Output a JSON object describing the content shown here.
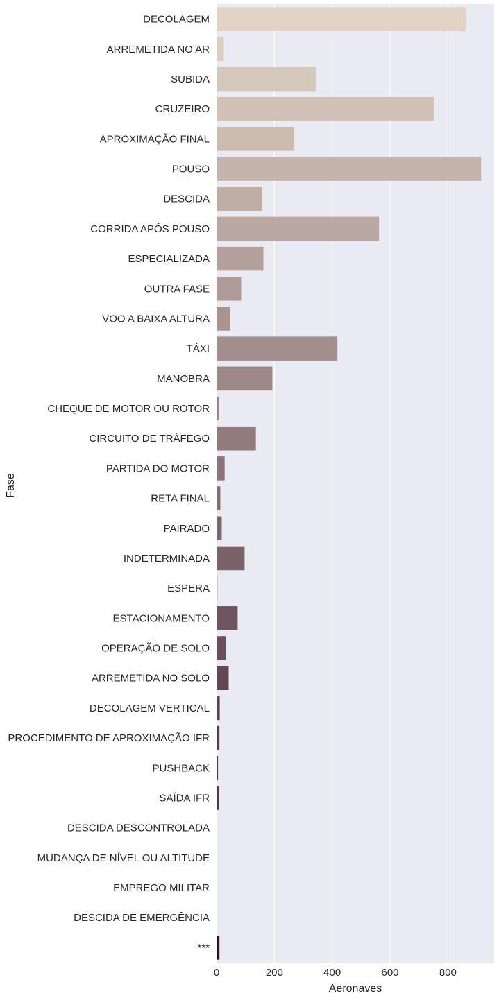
{
  "chart_data": {
    "type": "bar",
    "orientation": "horizontal",
    "xlabel": "Aeronaves",
    "ylabel": "Fase",
    "xlim": [
      0,
      960
    ],
    "xticks": [
      0,
      200,
      400,
      600,
      800
    ],
    "grid": true,
    "categories": [
      "DECOLAGEM",
      "ARREMETIDA NO AR",
      "SUBIDA",
      "CRUZEIRO",
      "APROXIMAÇÃO FINAL",
      "POUSO",
      "DESCIDA",
      "CORRIDA APÓS POUSO",
      "ESPECIALIZADA",
      "OUTRA FASE",
      "VOO A BAIXA ALTURA",
      "TÁXI",
      "MANOBRA",
      "CHEQUE DE MOTOR OU ROTOR",
      "CIRCUITO DE TRÁFEGO",
      "PARTIDA DO MOTOR",
      "RETA FINAL",
      "PAIRADO",
      "INDETERMINADA",
      "ESPERA",
      "ESTACIONAMENTO",
      "OPERAÇÃO DE SOLO",
      "ARREMETIDA NO SOLO",
      "DECOLAGEM VERTICAL",
      "PROCEDIMENTO DE APROXIMAÇÃO IFR",
      "PUSHBACK",
      "SAÍDA IFR",
      "DESCIDA DESCONTROLADA",
      "MUDANÇA DE NÍVEL OU ALTITUDE",
      "EMPREGO MILITAR",
      "DESCIDA DE EMERGÊNCIA",
      "***"
    ],
    "values": [
      862,
      25,
      343,
      753,
      269,
      915,
      158,
      562,
      162,
      85,
      48,
      418,
      193,
      7,
      136,
      28,
      13,
      18,
      97,
      3,
      73,
      32,
      42,
      11,
      10,
      5,
      7,
      0,
      0,
      0,
      0,
      10
    ],
    "colors": {
      "background": "#eaeaf2",
      "grid": "#ffffff",
      "bar_start": "#e2d4c5",
      "bar_end": "#2e0f25"
    }
  }
}
